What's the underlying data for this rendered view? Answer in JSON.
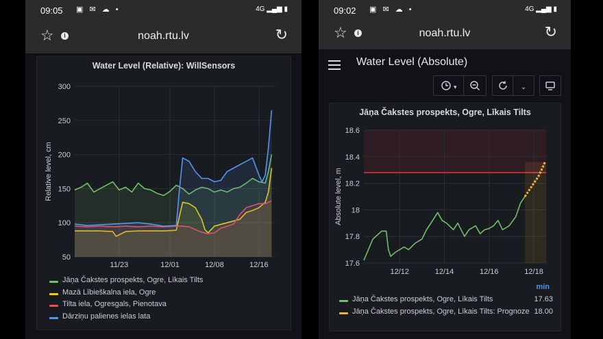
{
  "left": {
    "status": {
      "time": "09:05",
      "icons": "▣ ✉ ☁ •",
      "right_icons": "4G ▂▄▆ ▮"
    },
    "url": "noah.rtu.lv",
    "panel_title": "Water Level (Relative): WillSensors",
    "colors": {
      "green": "#73bf69",
      "yellow": "#f2cc0c",
      "red": "#f2495c",
      "blue": "#5794f2"
    },
    "chart_data": {
      "type": "line",
      "title": "Water Level (Relative): WillSensors",
      "ylabel": "Relative level, cm",
      "xlabel": "",
      "ylim": [
        50,
        300
      ],
      "yticks": [
        "300",
        "250",
        "200",
        "150",
        "100",
        "50"
      ],
      "xticks": [
        "11/23",
        "12/01",
        "12/08",
        "12/16"
      ],
      "x_domain": [
        "11/16",
        "12/18"
      ],
      "grid": true,
      "legend_placement": "bottom",
      "series": [
        {
          "name": "Jāņa Čakstes prospekts, Ogre, Līkais Tilts",
          "color": "#73bf69",
          "x": [
            0,
            1,
            2,
            3,
            4,
            5,
            6,
            7,
            8,
            9,
            10,
            11,
            12,
            13,
            14,
            15,
            16,
            17,
            18,
            19,
            20,
            21,
            22,
            23,
            24,
            25,
            26,
            27,
            28,
            29,
            30,
            30.5,
            31
          ],
          "values": [
            148,
            152,
            158,
            145,
            150,
            155,
            160,
            148,
            152,
            145,
            158,
            150,
            148,
            143,
            140,
            146,
            155,
            150,
            142,
            148,
            152,
            150,
            145,
            148,
            145,
            150,
            152,
            158,
            165,
            160,
            158,
            175,
            200
          ]
        },
        {
          "name": "Mazā Lībieškalna iela, Ogre",
          "color": "#f2cc0c",
          "x": [
            0,
            2,
            4,
            6,
            6.5,
            8,
            10,
            12,
            14,
            16,
            16.5,
            17,
            18,
            19,
            20,
            20.5,
            21,
            22,
            24,
            26,
            27,
            28,
            29,
            30,
            30.5,
            31
          ],
          "values": [
            88,
            88,
            88,
            87,
            80,
            87,
            88,
            88,
            88,
            89,
            110,
            130,
            128,
            122,
            105,
            90,
            85,
            95,
            100,
            105,
            115,
            118,
            122,
            130,
            145,
            180
          ]
        },
        {
          "name": "Tilta iela, Ogresgals, Pienotava",
          "color": "#f2495c",
          "x": [
            0,
            2,
            4,
            6,
            8,
            10,
            12,
            14,
            16,
            17,
            18,
            19,
            20,
            21,
            22,
            23,
            24,
            25,
            26,
            27,
            28,
            29,
            30,
            31
          ],
          "values": [
            95,
            94,
            95,
            94,
            95,
            94,
            95,
            94,
            95,
            95,
            94,
            90,
            86,
            84,
            85,
            92,
            95,
            98,
            112,
            122,
            125,
            128,
            128,
            132
          ]
        },
        {
          "name": "Dārziņu palienes ielas lata",
          "color": "#5794f2",
          "x": [
            0,
            2,
            4,
            6,
            8,
            10,
            12,
            14,
            16,
            16.5,
            17,
            18,
            19,
            20,
            21,
            22,
            23,
            24,
            25,
            26,
            27,
            28,
            29,
            29.5,
            30,
            30.5,
            31
          ],
          "values": [
            98,
            96,
            97,
            98,
            99,
            100,
            98,
            95,
            96,
            150,
            195,
            190,
            175,
            165,
            165,
            160,
            162,
            175,
            180,
            185,
            190,
            195,
            170,
            160,
            170,
            210,
            265
          ]
        }
      ]
    }
  },
  "right": {
    "status": {
      "time": "09:02",
      "icons": "▣ ✉ ☁ •",
      "right_icons": "4G ▂▄▆ ▮"
    },
    "url": "noah.rtu.lv",
    "dashboard_title": "Water Level (Absolute)",
    "toolbar": {
      "time_icon": "clock-icon",
      "zoom_icon": "zoom-out-icon",
      "refresh_icon": "refresh-icon",
      "dropdown_icon": "chevron-down-icon",
      "tv_icon": "tv-icon"
    },
    "panel_title": "Jāņa Čakstes prospekts, Ogre, Līkais Tilts",
    "unit_label": "min",
    "colors": {
      "green": "#73bf69",
      "yellow": "#f2b134",
      "threshold": "#e02f44"
    },
    "chart_data": {
      "type": "line",
      "title": "Jāņa Čakstes prospekts, Ogre, Līkais Tilts",
      "ylabel": "Absolute level, m",
      "xlabel": "",
      "ylim": [
        17.6,
        18.6
      ],
      "yticks": [
        "18.6",
        "18.4",
        "18.2",
        "18",
        "17.8",
        "17.6"
      ],
      "xticks": [
        "12/12",
        "12/14",
        "12/16",
        "12/18"
      ],
      "x_domain": [
        "12/10",
        "12/18"
      ],
      "threshold": 18.28,
      "grid": true,
      "legend_placement": "bottom",
      "series": [
        {
          "name": "Jāņa Čakstes prospekts, Ogre, Līkais Tilts",
          "color": "#73bf69",
          "legend_value": "17.63",
          "x": [
            0,
            0.4,
            0.8,
            1.0,
            1.1,
            1.2,
            1.4,
            1.6,
            1.8,
            2.0,
            2.3,
            2.6,
            2.8,
            3.0,
            3.3,
            3.5,
            3.7,
            4.0,
            4.2,
            4.5,
            4.7,
            5.0,
            5.2,
            5.4,
            5.6,
            5.8,
            6.0,
            6.2,
            6.5,
            6.8,
            7.0,
            7.2
          ],
          "values": [
            17.62,
            17.78,
            17.84,
            17.84,
            17.7,
            17.65,
            17.68,
            17.7,
            17.72,
            17.7,
            17.75,
            17.78,
            17.85,
            17.9,
            17.98,
            17.92,
            17.9,
            17.85,
            17.9,
            17.8,
            17.85,
            17.88,
            17.82,
            17.85,
            17.86,
            17.88,
            17.92,
            17.85,
            17.88,
            17.95,
            18.05,
            18.1
          ]
        },
        {
          "name": "Jāņa Čakstes prospekts, Ogre, Līkais Tilts: Prognoze",
          "color": "#f2b134",
          "legend_value": "18.00",
          "x": [
            7.2,
            7.4,
            7.6,
            7.8,
            8.0,
            8.1
          ],
          "values": [
            18.1,
            18.15,
            18.2,
            18.25,
            18.32,
            18.36
          ]
        }
      ]
    }
  }
}
